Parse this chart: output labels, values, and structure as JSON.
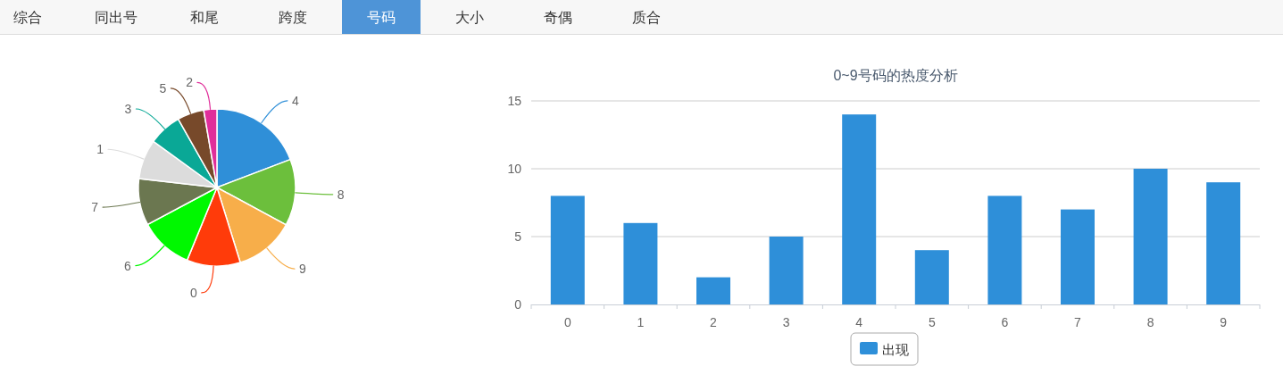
{
  "chart_data": [
    {
      "type": "other",
      "categories": [
        "综合",
        "同出号",
        "和尾",
        "跨度",
        "号码",
        "大小",
        "奇偶",
        "质合"
      ],
      "colors": [
        "#f7f7f7",
        "#f7f7f7",
        "#f7f7f7",
        "#f7f7f7",
        "#4e94d7",
        "#f7f7f7",
        "#f7f7f7",
        "#f7f7f7"
      ]
    },
    {
      "type": "pie",
      "categories": [
        "4",
        "8",
        "9",
        "0",
        "6",
        "7",
        "1",
        "3",
        "5",
        "2"
      ],
      "values": [
        19.2,
        13.7,
        12.3,
        11.0,
        11.0,
        9.6,
        8.2,
        6.8,
        5.5,
        2.7
      ],
      "colors": [
        "#2f8fd8",
        "#6cbf3c",
        "#f7ae4a",
        "#ff3b0a",
        "#00f800",
        "#6b7750",
        "#dcdcdc",
        "#0aa896",
        "#77492a",
        "#e02e9a"
      ]
    },
    {
      "type": "bar",
      "title": "0~9号码的热度分析",
      "categories": [
        "0",
        "1",
        "2",
        "3",
        "4",
        "5",
        "6",
        "7",
        "8",
        "9"
      ],
      "series": [
        {
          "name": "出现",
          "color": "#2e8fd9",
          "values": [
            8,
            6,
            2,
            5,
            14,
            4,
            8,
            7,
            10,
            9
          ]
        }
      ],
      "ylim": [
        0,
        15
      ],
      "yticks": [
        0,
        5,
        10,
        15
      ],
      "grid": "y",
      "legend": "bottom"
    }
  ]
}
